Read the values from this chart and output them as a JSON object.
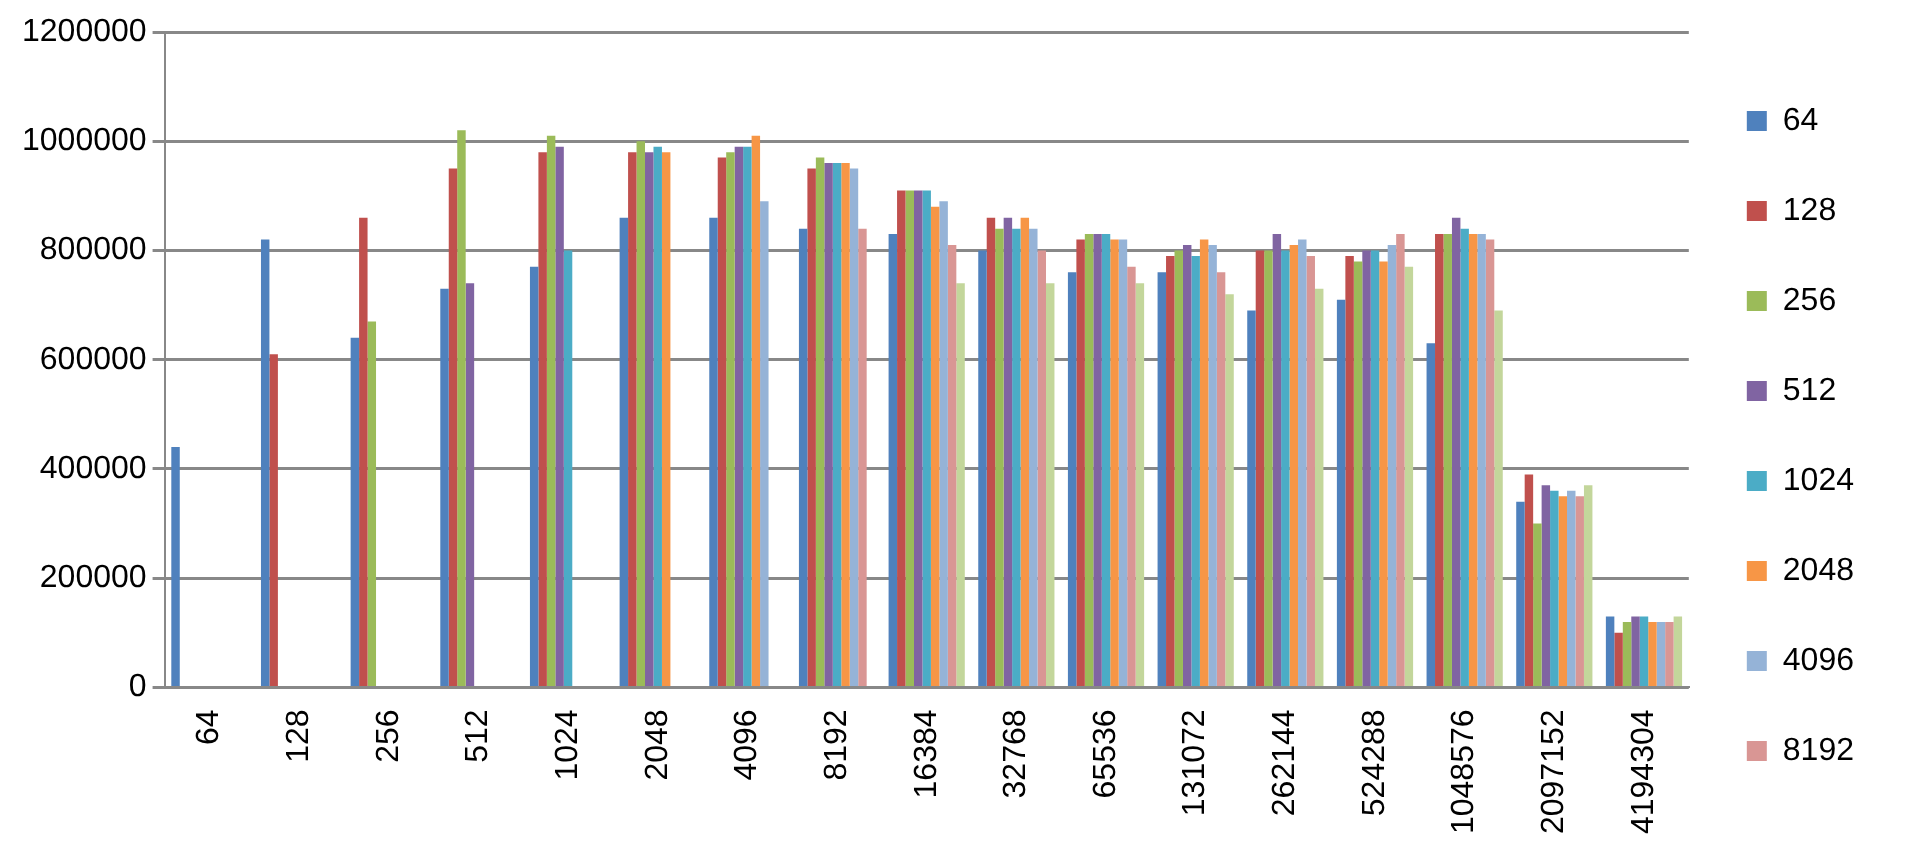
{
  "chart_data": {
    "type": "bar",
    "categories": [
      "64",
      "128",
      "256",
      "512",
      "1024",
      "2048",
      "4096",
      "8192",
      "16384",
      "32768",
      "65536",
      "131072",
      "262144",
      "524288",
      "1048576",
      "2097152",
      "4194304"
    ],
    "series": [
      {
        "name": "64",
        "color": "#4f81bd",
        "values": [
          440000,
          820000,
          640000,
          730000,
          770000,
          860000,
          860000,
          840000,
          830000,
          800000,
          760000,
          760000,
          690000,
          710000,
          630000,
          340000,
          130000
        ]
      },
      {
        "name": "128",
        "color": "#c0504d",
        "values": [
          null,
          610000,
          860000,
          950000,
          980000,
          980000,
          970000,
          950000,
          910000,
          860000,
          820000,
          790000,
          800000,
          790000,
          830000,
          390000,
          100000
        ]
      },
      {
        "name": "256",
        "color": "#9bbb59",
        "values": [
          null,
          null,
          670000,
          1020000,
          1010000,
          1000000,
          980000,
          970000,
          910000,
          840000,
          830000,
          800000,
          800000,
          780000,
          830000,
          300000,
          120000
        ]
      },
      {
        "name": "512",
        "color": "#8064a2",
        "values": [
          null,
          null,
          null,
          740000,
          990000,
          980000,
          990000,
          960000,
          910000,
          860000,
          830000,
          810000,
          830000,
          800000,
          860000,
          370000,
          130000
        ]
      },
      {
        "name": "1024",
        "color": "#4bacc6",
        "values": [
          null,
          null,
          null,
          null,
          800000,
          990000,
          990000,
          960000,
          910000,
          840000,
          830000,
          790000,
          800000,
          800000,
          840000,
          360000,
          130000
        ]
      },
      {
        "name": "2048",
        "color": "#f79646",
        "values": [
          null,
          null,
          null,
          null,
          null,
          980000,
          1010000,
          960000,
          880000,
          860000,
          820000,
          820000,
          810000,
          780000,
          830000,
          350000,
          120000
        ]
      },
      {
        "name": "4096",
        "color": "#95b3d7",
        "values": [
          null,
          null,
          null,
          null,
          null,
          null,
          890000,
          950000,
          890000,
          840000,
          820000,
          810000,
          820000,
          810000,
          830000,
          360000,
          120000
        ]
      },
      {
        "name": "8192",
        "color": "#d99694",
        "values": [
          null,
          null,
          null,
          null,
          null,
          null,
          null,
          840000,
          810000,
          800000,
          770000,
          760000,
          790000,
          830000,
          820000,
          350000,
          120000
        ]
      },
      {
        "color": "#c3d69b",
        "values": [
          null,
          null,
          null,
          null,
          null,
          null,
          null,
          null,
          740000,
          740000,
          740000,
          720000,
          730000,
          770000,
          690000,
          370000,
          130000
        ]
      }
    ],
    "ylim": [
      0,
      1200000
    ],
    "yticks": [
      0,
      200000,
      400000,
      600000,
      800000,
      1000000,
      1200000
    ],
    "grid": "y",
    "legend": "right"
  }
}
